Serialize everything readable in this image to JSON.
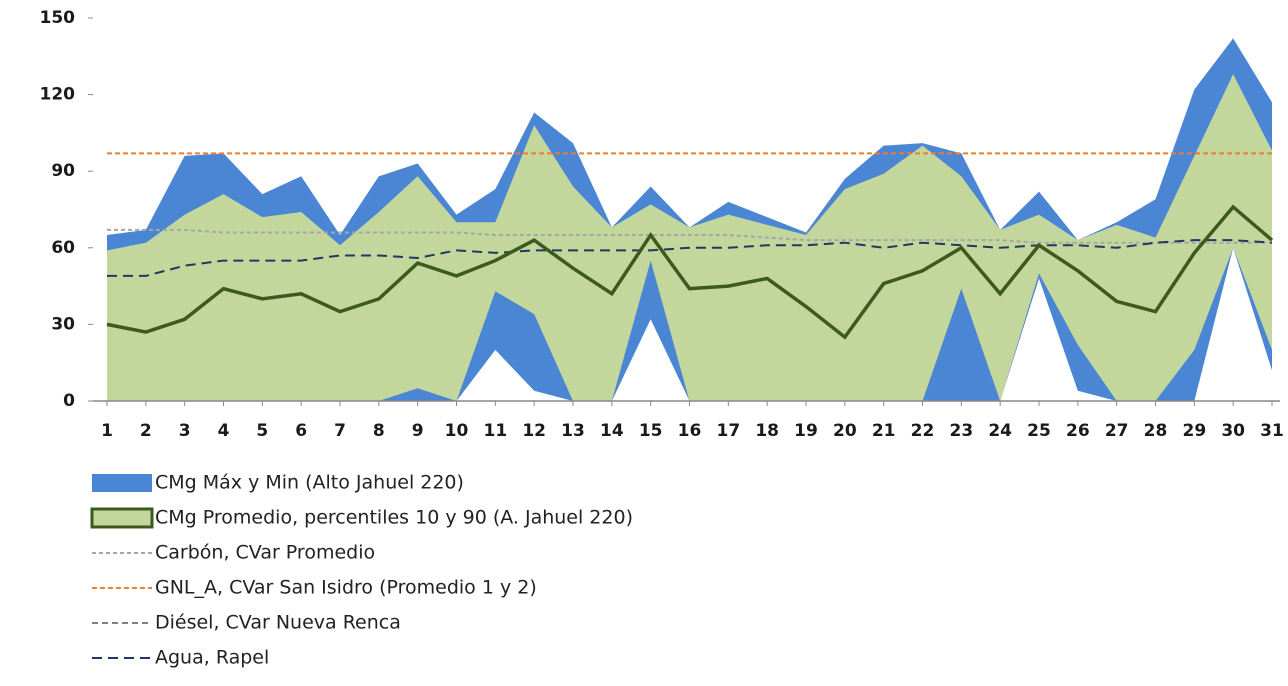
{
  "chart_data": {
    "type": "area",
    "categories": [
      "1",
      "2",
      "3",
      "4",
      "5",
      "6",
      "7",
      "8",
      "9",
      "10",
      "11",
      "12",
      "13",
      "14",
      "15",
      "16",
      "17",
      "18",
      "19",
      "20",
      "21",
      "22",
      "23",
      "24",
      "25",
      "26",
      "27",
      "28",
      "29",
      "30",
      "31"
    ],
    "ylim": [
      0,
      150
    ],
    "yticks": [
      0,
      30,
      60,
      90,
      120,
      150
    ],
    "series": [
      {
        "name": "CMg Máx y Min (Alto Jahuel 220)",
        "kind": "band",
        "color": "#4a86d4",
        "high": [
          65,
          67,
          96,
          97,
          81,
          88,
          65,
          88,
          93,
          73,
          83,
          113,
          101,
          68,
          84,
          68,
          78,
          72,
          66,
          87,
          100,
          101,
          97,
          67,
          82,
          63,
          70,
          79,
          122,
          142,
          117
        ],
        "low": [
          0,
          0,
          0,
          0,
          0,
          0,
          0,
          0,
          0,
          0,
          20,
          4,
          0,
          0,
          32,
          0,
          0,
          0,
          0,
          0,
          0,
          0,
          0,
          0,
          48,
          4,
          0,
          0,
          0,
          60,
          12
        ]
      },
      {
        "name": "CMg Promedio, percentiles 10 y 90 (A. Jahuel 220)",
        "kind": "band",
        "color": "#c3d69b",
        "line_color": "#3d5a1e",
        "high": [
          59,
          62,
          73,
          81,
          72,
          74,
          61,
          74,
          88,
          70,
          70,
          108,
          84,
          68,
          77,
          68,
          73,
          69,
          65,
          83,
          89,
          100,
          88,
          67,
          73,
          63,
          69,
          64,
          96,
          128,
          98
        ],
        "low": [
          0,
          0,
          0,
          0,
          0,
          0,
          0,
          0,
          5,
          0,
          43,
          34,
          0,
          0,
          55,
          0,
          0,
          0,
          0,
          0,
          0,
          0,
          44,
          0,
          50,
          22,
          0,
          0,
          20,
          60,
          20
        ],
        "values": [
          30,
          27,
          32,
          44,
          40,
          42,
          35,
          40,
          54,
          49,
          55,
          63,
          52,
          42,
          65,
          44,
          45,
          48,
          37,
          25,
          46,
          51,
          60,
          42,
          61,
          51,
          39,
          35,
          58,
          76,
          63
        ]
      },
      {
        "name": "Carbón, CVar Promedio",
        "kind": "line",
        "color": "#a6a6a6",
        "dash": "4 3",
        "values": [
          67,
          67,
          67,
          66,
          66,
          66,
          66,
          66,
          66,
          66,
          65,
          65,
          65,
          65,
          65,
          65,
          65,
          64,
          63,
          63,
          63,
          63,
          63,
          63,
          62,
          62,
          62,
          62,
          62,
          62,
          62
        ]
      },
      {
        "name": "GNL_A, CVar San Isidro (Promedio 1 y 2)",
        "kind": "line",
        "color": "#ed7d31",
        "dash": "5 3",
        "values": [
          97,
          97,
          97,
          97,
          97,
          97,
          97,
          97,
          97,
          97,
          97,
          97,
          97,
          97,
          97,
          97,
          97,
          97,
          97,
          97,
          97,
          97,
          97,
          97,
          97,
          97,
          97,
          97,
          97,
          97,
          97
        ]
      },
      {
        "name": "Diésel, CVar Nueva Renca",
        "kind": "line",
        "color": "#7f7f7f",
        "dash": "6 4",
        "values": [
          null,
          null,
          null,
          null,
          null,
          null,
          null,
          null,
          null,
          null,
          null,
          null,
          null,
          null,
          null,
          null,
          null,
          null,
          null,
          null,
          null,
          null,
          null,
          null,
          null,
          null,
          null,
          null,
          null,
          null,
          null
        ]
      },
      {
        "name": "Agua, Rapel",
        "kind": "line",
        "color": "#1f3864",
        "dash": "10 6",
        "values": [
          49,
          49,
          53,
          55,
          55,
          55,
          57,
          57,
          56,
          59,
          58,
          59,
          59,
          59,
          59,
          60,
          60,
          61,
          61,
          62,
          60,
          62,
          61,
          60,
          61,
          61,
          60,
          62,
          63,
          63,
          62
        ]
      }
    ]
  }
}
